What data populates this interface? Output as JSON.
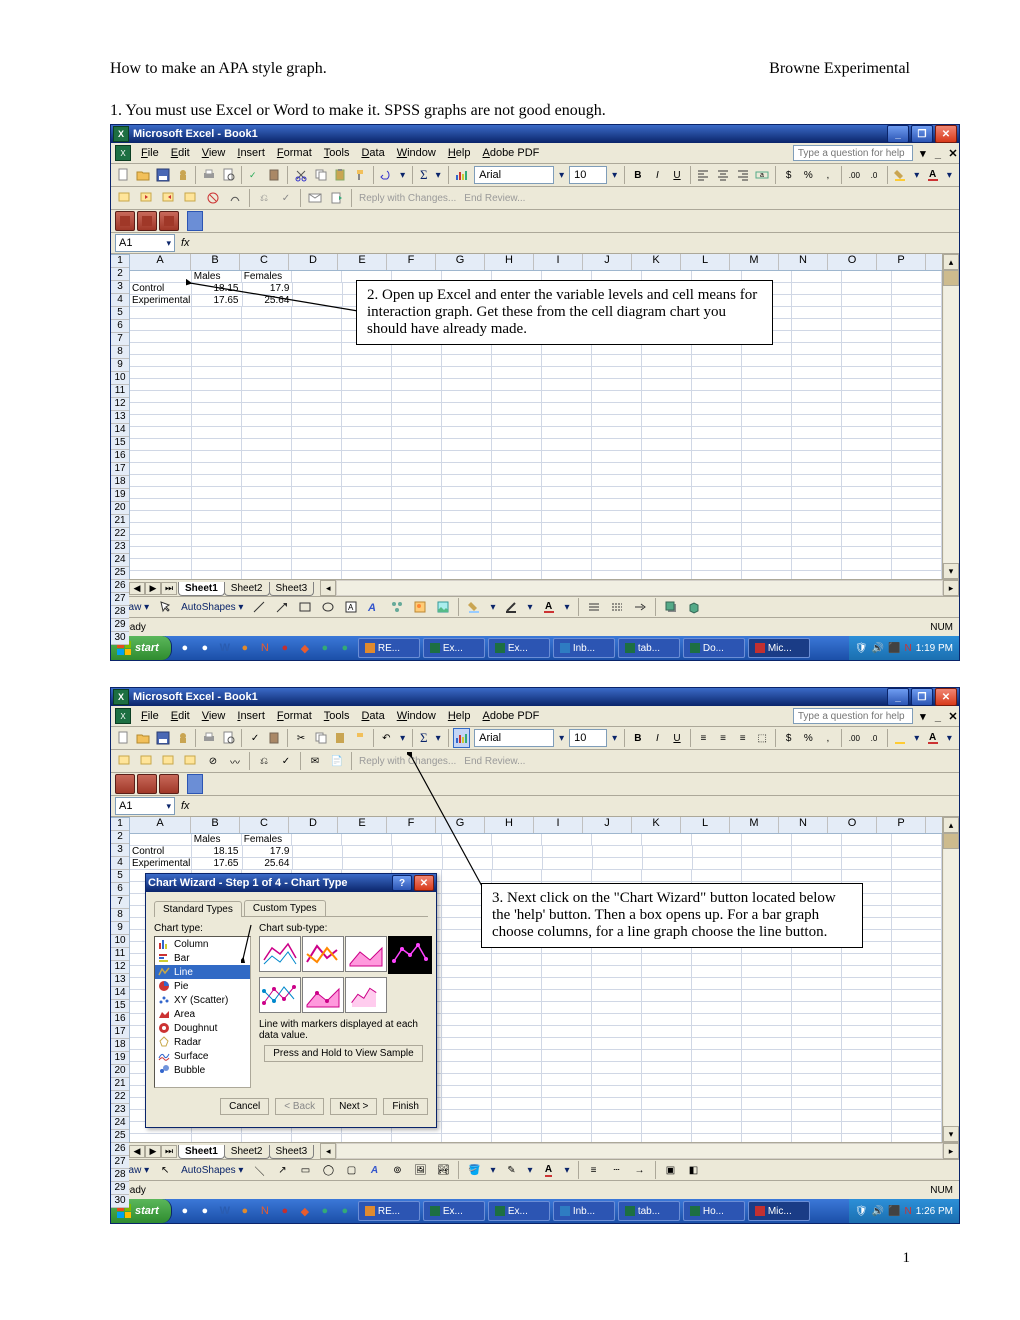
{
  "doc": {
    "title_left": "How to make an APA style graph.",
    "title_right": "Browne Experimental",
    "step1": "1. You must use Excel or Word to make it. SPSS graphs are not good enough.",
    "page_number": "1"
  },
  "callouts": {
    "c2": "2. Open up Excel and enter the variable levels and cell means for interaction graph. Get these from the cell diagram chart you should have already made.",
    "c3": "3. Next click on the \"Chart Wizard\" button located below the 'help' button. Then a box opens up. For a bar graph choose columns, for a line graph choose the line button."
  },
  "excel": {
    "title": "Microsoft Excel - Book1",
    "menus": [
      "File",
      "Edit",
      "View",
      "Insert",
      "Format",
      "Tools",
      "Data",
      "Window",
      "Help",
      "Adobe PDF"
    ],
    "help_placeholder": "Type a question for help",
    "font_name": "Arial",
    "font_size": "10",
    "review_label": "Reply with Changes...",
    "end_review_label": "End Review...",
    "namebox": "A1",
    "columns": [
      "A",
      "B",
      "C",
      "D",
      "E",
      "F",
      "G",
      "H",
      "I",
      "J",
      "K",
      "L",
      "M",
      "N",
      "O",
      "P"
    ],
    "rows_count": 30,
    "data": {
      "r1": {
        "B": "Males",
        "C": "Females"
      },
      "r2": {
        "A": "Control",
        "B": "18.15",
        "C": "17.9"
      },
      "r3": {
        "A": "Experimental",
        "B": "17.65",
        "C": "25.64"
      }
    },
    "sheets": [
      "Sheet1",
      "Sheet2",
      "Sheet3"
    ],
    "active_sheet": 0,
    "drawbar": {
      "draw": "Draw ▾",
      "autoshapes": "AutoShapes ▾"
    },
    "status": {
      "left": "Ready",
      "right": "NUM"
    }
  },
  "taskbar": {
    "start": "start",
    "items1": [
      {
        "label": "RE...",
        "color": "#e08a2e"
      },
      {
        "label": "Ex...",
        "color": "#1d6f42"
      },
      {
        "label": "Ex...",
        "color": "#1d6f42"
      },
      {
        "label": "Inb...",
        "color": "#2e7cc2"
      },
      {
        "label": "tab...",
        "color": "#1d6f42"
      },
      {
        "label": "Do...",
        "color": "#1d6f42"
      },
      {
        "label": "Mic...",
        "color": "#c23030",
        "active": true
      }
    ],
    "time1": "1:19 PM",
    "items2": [
      {
        "label": "RE...",
        "color": "#e08a2e"
      },
      {
        "label": "Ex...",
        "color": "#1d6f42"
      },
      {
        "label": "Ex...",
        "color": "#1d6f42"
      },
      {
        "label": "Inb...",
        "color": "#2e7cc2"
      },
      {
        "label": "tab...",
        "color": "#1d6f42"
      },
      {
        "label": "Ho...",
        "color": "#1d6f42"
      },
      {
        "label": "Mic...",
        "color": "#c23030",
        "active": true
      }
    ],
    "time2": "1:26 PM"
  },
  "wizard": {
    "title": "Chart Wizard - Step 1 of 4 - Chart Type",
    "tabs": [
      "Standard Types",
      "Custom Types"
    ],
    "type_label": "Chart type:",
    "subtype_label": "Chart sub-type:",
    "types": [
      {
        "name": "Column",
        "icon": "column"
      },
      {
        "name": "Bar",
        "icon": "bar"
      },
      {
        "name": "Line",
        "icon": "line",
        "selected": true
      },
      {
        "name": "Pie",
        "icon": "pie"
      },
      {
        "name": "XY (Scatter)",
        "icon": "scatter"
      },
      {
        "name": "Area",
        "icon": "area"
      },
      {
        "name": "Doughnut",
        "icon": "doughnut"
      },
      {
        "name": "Radar",
        "icon": "radar"
      },
      {
        "name": "Surface",
        "icon": "surface"
      },
      {
        "name": "Bubble",
        "icon": "bubble"
      }
    ],
    "description": "Line with markers displayed at each data value.",
    "sample_btn": "Press and Hold to View Sample",
    "buttons": {
      "cancel": "Cancel",
      "back": "< Back",
      "next": "Next >",
      "finish": "Finish"
    }
  },
  "colors": {
    "titlebar_top": "#3b6bc8",
    "titlebar_bottom": "#0a246a",
    "gray_bg": "#ece9d8",
    "border_gray": "#aca899",
    "col_header": "#e4ecf7",
    "grid_line": "#d0d7e5",
    "select_blue": "#316ac5",
    "start_green": "#2f8c2f",
    "taskbar_blue": "#1b4fa8"
  }
}
